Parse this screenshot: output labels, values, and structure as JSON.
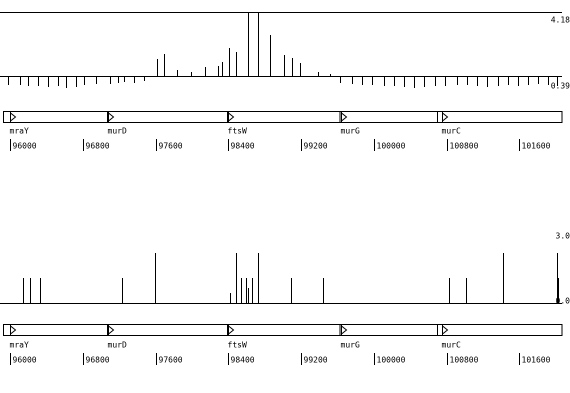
{
  "chart_data": [
    {
      "type": "bar",
      "x": [
        95980,
        96110,
        96200,
        96310,
        96420,
        96530,
        96620,
        96730,
        96810,
        96950,
        97100,
        97190,
        97250,
        97360,
        97470,
        97620,
        97690,
        97840,
        97990,
        98140,
        98290,
        98330,
        98410,
        98490,
        98620,
        98730,
        98860,
        99010,
        99100,
        99190,
        99390,
        99520,
        99630,
        99760,
        99870,
        99980,
        100110,
        100220,
        100330,
        100440,
        100550,
        100670,
        100780,
        100910,
        101020,
        101130,
        101240,
        101370,
        101480,
        101590,
        101700,
        101810,
        101920,
        102010
      ],
      "values": [
        0.54,
        0.54,
        0.49,
        0.49,
        0.44,
        0.49,
        0.39,
        0.44,
        0.54,
        0.59,
        0.59,
        0.64,
        0.69,
        0.64,
        0.74,
        1.84,
        2.09,
        1.29,
        1.19,
        1.44,
        1.49,
        1.69,
        2.38,
        2.19,
        4.13,
        4.18,
        3.03,
        2.04,
        1.89,
        1.64,
        1.19,
        1.09,
        0.64,
        0.59,
        0.54,
        0.54,
        0.49,
        0.49,
        0.44,
        0.39,
        0.44,
        0.49,
        0.49,
        0.54,
        0.54,
        0.49,
        0.44,
        0.49,
        0.54,
        0.49,
        0.54,
        0.59,
        0.54,
        0.49
      ],
      "color": "#000000",
      "baseline": 1,
      "frame": true,
      "ylim": [
        0.39,
        4.18
      ],
      "yticks": [
        4.18,
        0.39
      ],
      "xlim": [
        95890,
        102070
      ],
      "xticks": [
        96000,
        96800,
        97600,
        98400,
        99200,
        100000,
        100800,
        101600
      ],
      "genes": [
        {
          "name": "mraY",
          "start": 96000,
          "end": 97070
        },
        {
          "name": "murD",
          "start": 97078,
          "end": 98390
        },
        {
          "name": "ftsW",
          "start": 98398,
          "end": 99630
        },
        {
          "name": "murG",
          "start": 99641,
          "end": 100700
        },
        {
          "name": "murC",
          "start": 100752,
          "end": 102070
        }
      ]
    },
    {
      "type": "bar",
      "x": [
        96140,
        96220,
        96330,
        97230,
        97590,
        98420,
        98490,
        98540,
        98600,
        98620,
        98660,
        98730,
        99090,
        99440,
        100830,
        101010,
        101420,
        102020,
        102030
      ],
      "values": [
        1,
        1,
        1,
        1,
        2,
        0.4,
        2,
        1,
        1,
        0.6,
        1,
        2,
        1,
        1,
        1,
        1,
        2,
        2,
        1
      ],
      "color": "#000000",
      "baseline": 0,
      "frame": false,
      "ylim": [
        0,
        3
      ],
      "yticks": [
        {
          "value": 3,
          "label": "3.0"
        },
        {
          "value": 0,
          "label": "0.0"
        }
      ],
      "xlim": [
        95890,
        102070
      ],
      "xticks": [
        96000,
        96800,
        97600,
        98400,
        99200,
        100000,
        100800,
        101600
      ],
      "genes": [
        {
          "name": "mraY",
          "start": 96000,
          "end": 97070
        },
        {
          "name": "murD",
          "start": 97078,
          "end": 98390
        },
        {
          "name": "ftsW",
          "start": 98398,
          "end": 99630
        },
        {
          "name": "murG",
          "start": 99641,
          "end": 100700
        },
        {
          "name": "murC",
          "start": 100752,
          "end": 102070
        }
      ]
    }
  ]
}
